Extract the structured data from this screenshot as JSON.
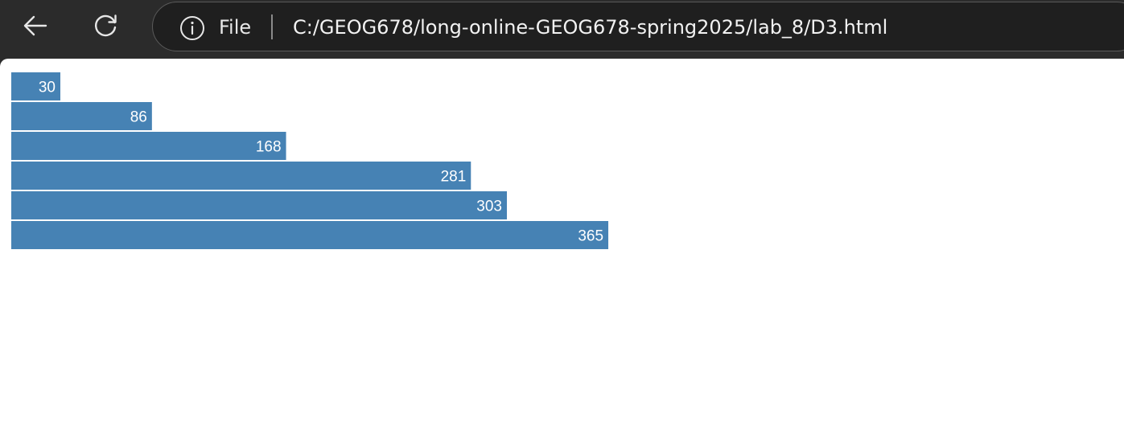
{
  "browser": {
    "scheme_label": "File",
    "url": "C:/GEOG678/long-online-GEOG678-spring2025/lab_8/D3.html",
    "icons": {
      "back": "back-arrow-icon",
      "reload": "reload-icon",
      "info": "info-icon"
    }
  },
  "colors": {
    "bar": "#4682b4",
    "label": "#ffffff"
  },
  "chart_data": {
    "type": "bar",
    "orientation": "horizontal",
    "values": [
      30,
      86,
      168,
      281,
      303,
      365
    ],
    "title": "",
    "xlabel": "",
    "ylabel": ""
  }
}
